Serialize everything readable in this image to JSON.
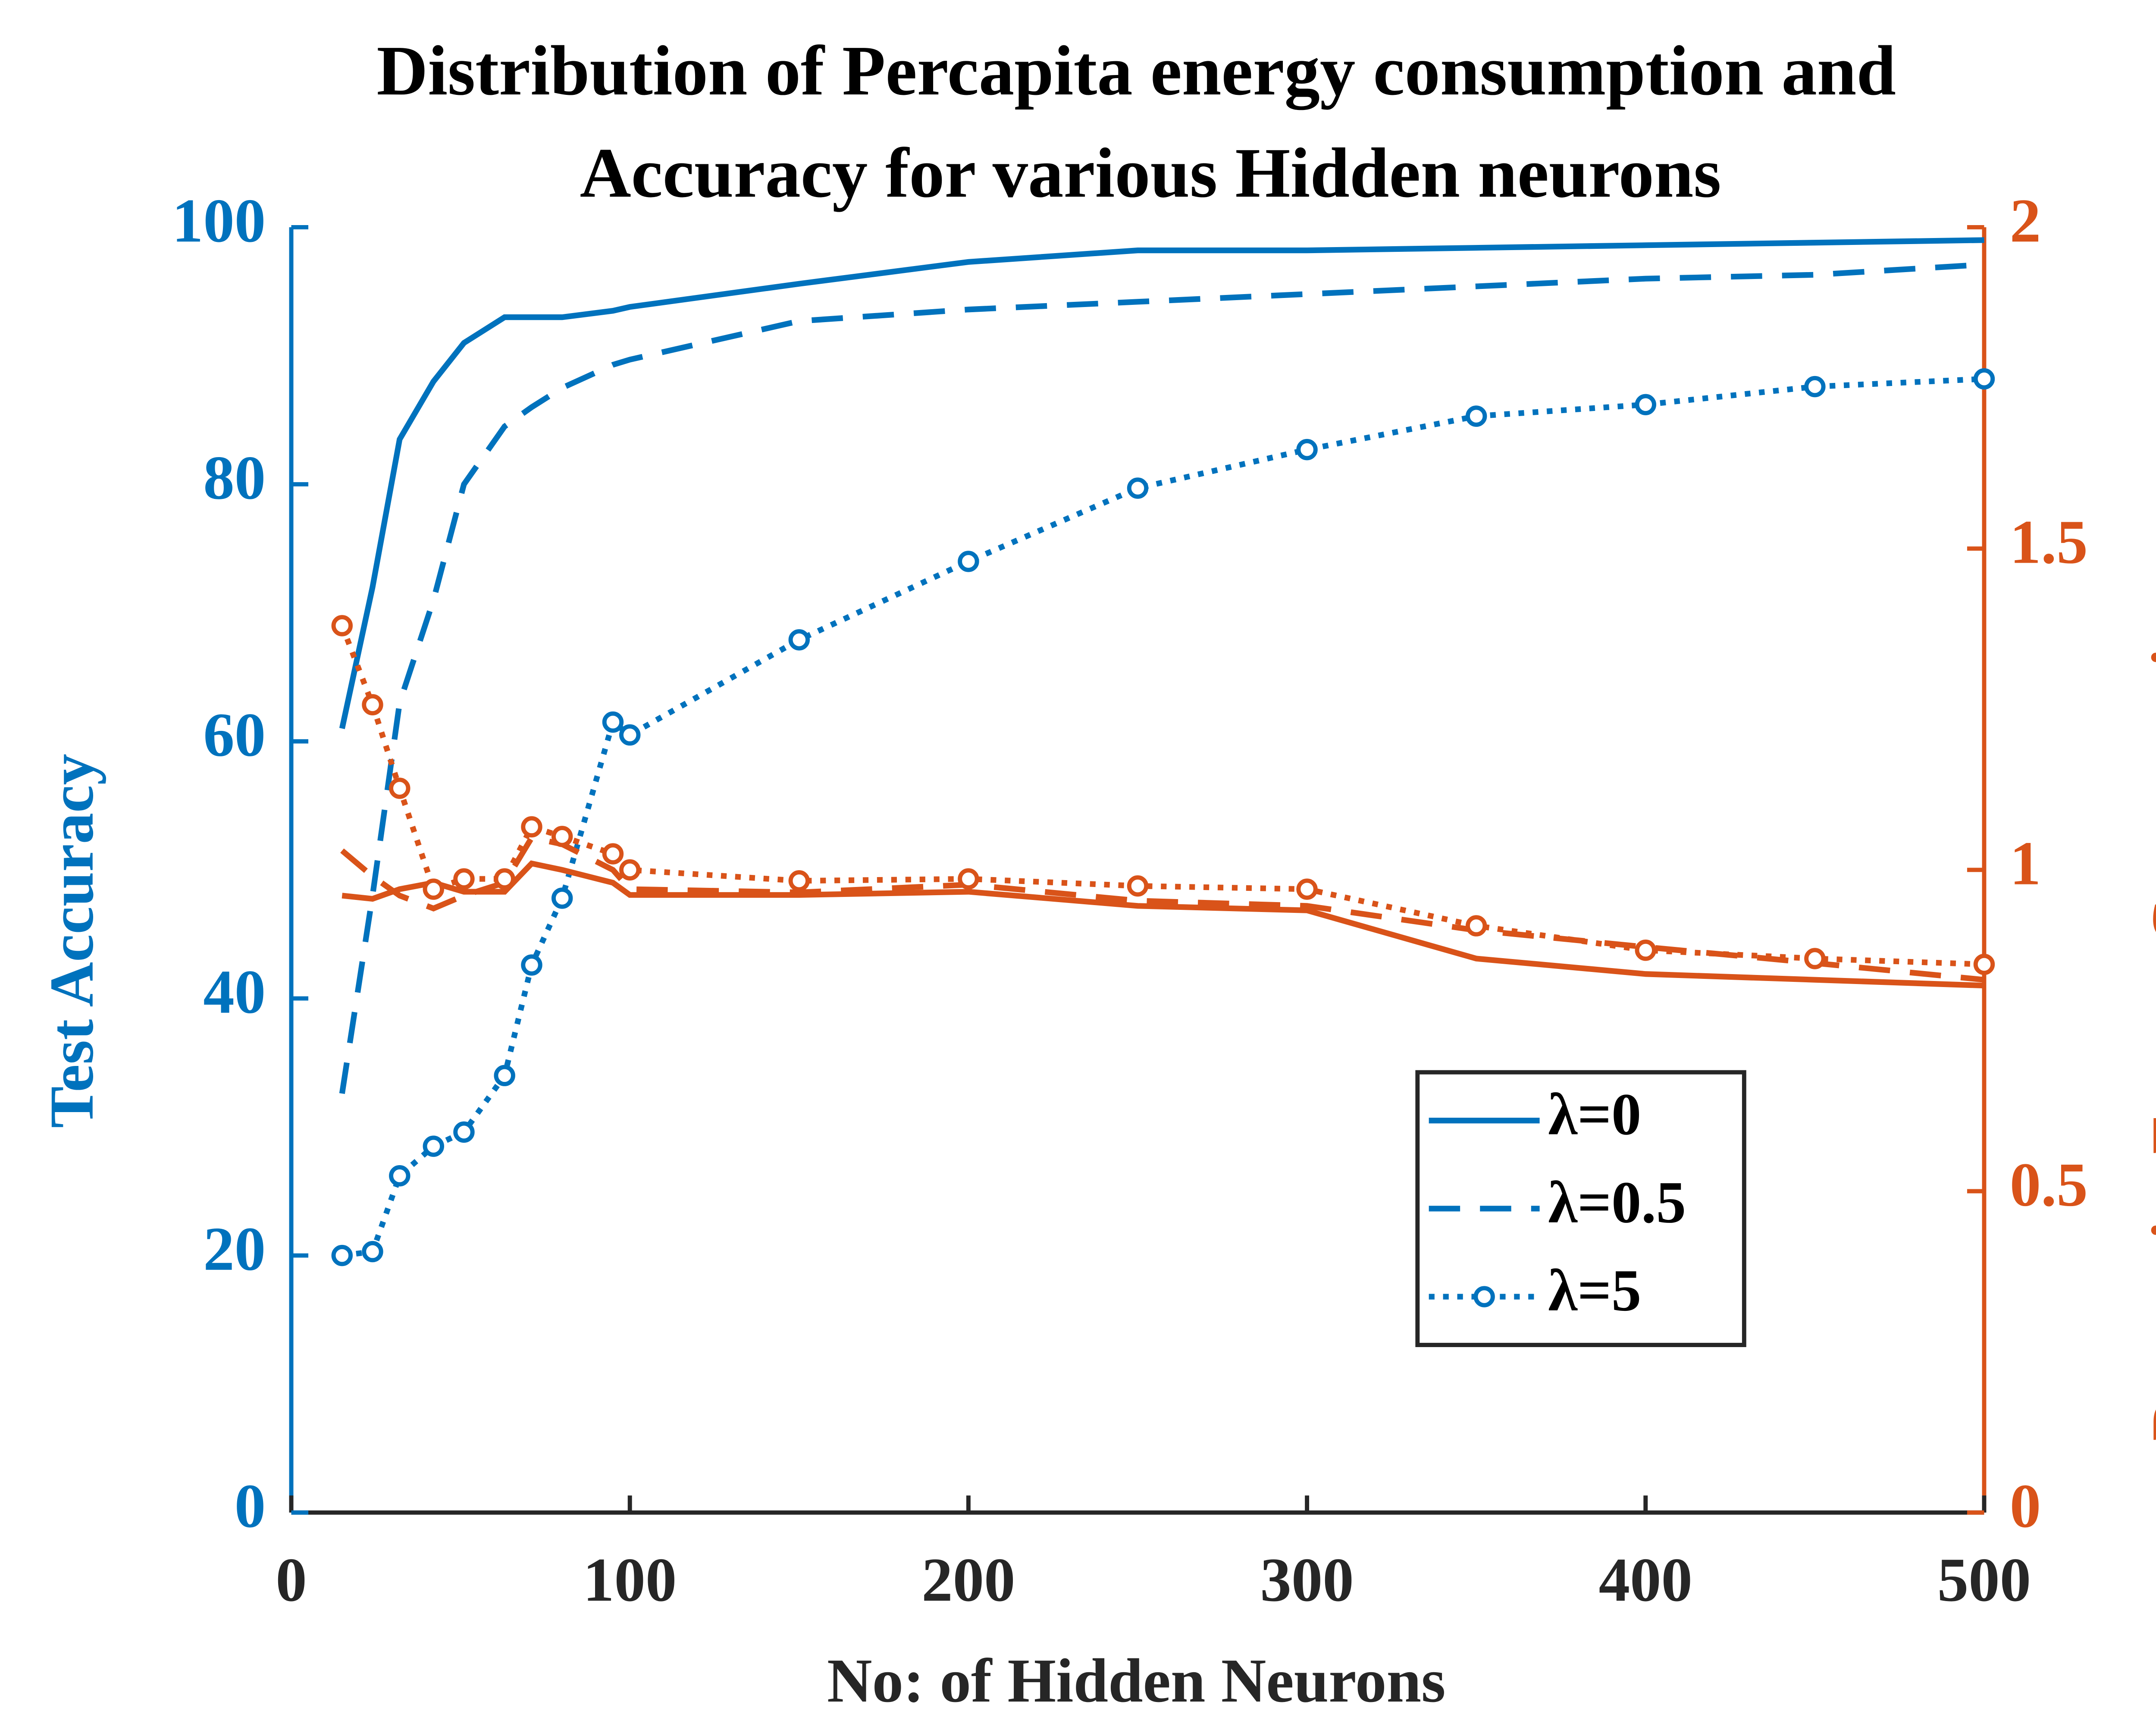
{
  "chart_data": {
    "type": "line",
    "title": [
      "Distribution of Percapita energy consumption and",
      "Accuracy for various Hidden neurons"
    ],
    "xlabel": "No: of Hidden Neurons",
    "ylabel": "Test Accuracy",
    "y2label": "Per capita Energy Consumption",
    "x": [
      15,
      24,
      32,
      42,
      51,
      63,
      71,
      80,
      95,
      100,
      150,
      200,
      250,
      300,
      350,
      400,
      450,
      500
    ],
    "xlim": [
      0,
      500
    ],
    "xticks": [
      0,
      100,
      200,
      300,
      400,
      500
    ],
    "ylim": [
      0,
      100
    ],
    "yticks": [
      0,
      20,
      40,
      60,
      80,
      100
    ],
    "y2lim": [
      0,
      2
    ],
    "y2ticks": [
      0,
      0.5,
      1,
      1.5,
      2
    ],
    "ycolor": "#0072BD",
    "y2color": "#D95319",
    "legend": "lower right",
    "series": [
      {
        "name": "λ=0",
        "color": "#0072BD",
        "style": "solid",
        "marker": false,
        "axis": "y",
        "values": [
          61,
          72,
          83.5,
          88,
          91,
          93,
          93,
          93,
          93.5,
          93.8,
          95.6,
          97.3,
          98.2,
          98.2,
          98.4,
          98.6,
          98.8,
          99
        ]
      },
      {
        "name": "λ=0.5",
        "color": "#0072BD",
        "style": "dashed",
        "marker": false,
        "axis": "y",
        "values": [
          32.6,
          48,
          63,
          71,
          80,
          84.5,
          86,
          87.5,
          89.3,
          89.7,
          92.7,
          93.6,
          94.2,
          94.8,
          95.4,
          96,
          96.3,
          97.1
        ]
      },
      {
        "name": "λ=5",
        "color": "#0072BD",
        "style": "dotted",
        "marker": true,
        "axis": "y",
        "values": [
          20,
          20.3,
          26.2,
          28.5,
          29.6,
          34,
          42.6,
          47.8,
          61.5,
          60.5,
          67.9,
          74,
          79.7,
          82.7,
          85.3,
          86.2,
          87.6,
          88.2
        ]
      },
      {
        "color": "#D95319",
        "style": "solid",
        "marker": false,
        "axis": "y2",
        "values": [
          0.96,
          0.955,
          0.97,
          0.98,
          0.966,
          0.966,
          1.01,
          1.0,
          0.98,
          0.961,
          0.961,
          0.966,
          0.944,
          0.937,
          0.862,
          0.838,
          0.829,
          0.82
        ]
      },
      {
        "color": "#D95319",
        "style": "dashed",
        "marker": false,
        "axis": "y2",
        "values": [
          1.03,
          0.99,
          0.96,
          0.94,
          0.96,
          0.98,
          1.05,
          1.04,
          1.0,
          0.97,
          0.965,
          0.977,
          0.952,
          0.944,
          0.906,
          0.88,
          0.855,
          0.829
        ]
      },
      {
        "color": "#D95319",
        "style": "dotted",
        "marker": true,
        "axis": "y2",
        "values": [
          1.38,
          1.257,
          1.127,
          0.97,
          0.986,
          0.986,
          1.067,
          1.052,
          1.025,
          1.0,
          0.983,
          0.986,
          0.975,
          0.97,
          0.913,
          0.875,
          0.862,
          0.853
        ]
      }
    ]
  }
}
